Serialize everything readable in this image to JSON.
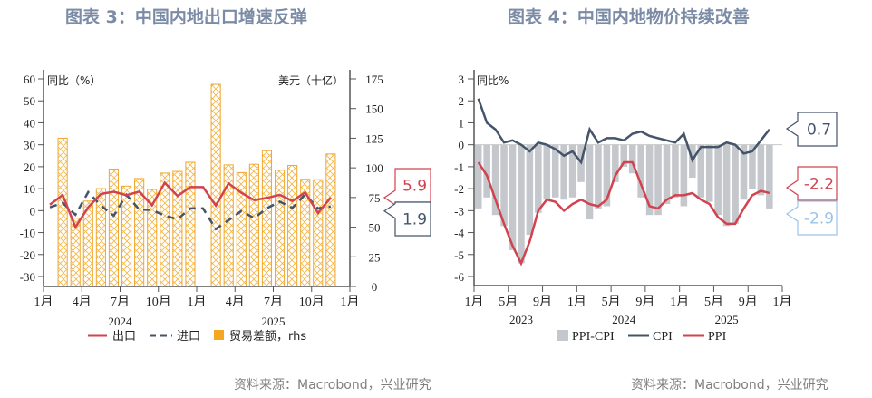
{
  "charts": [
    {
      "title": "图表 3：中国内地出口增速反弹",
      "source": "资料来源：Macrobond，兴业研究",
      "chart_data": {
        "type": "bar+line",
        "y_left_label": "同比（%）",
        "y_right_label": "美元（十亿）",
        "ylim_left": [
          -35,
          62
        ],
        "yticks_left": [
          60,
          50,
          40,
          30,
          20,
          10,
          0,
          -10,
          -20,
          -30
        ],
        "ylim_right": [
          0,
          180
        ],
        "yticks_right": [
          175,
          150,
          125,
          100,
          75,
          50,
          25,
          0
        ],
        "xticks": [
          "1月",
          "4月",
          "7月",
          "10月",
          "1月",
          "4月",
          "7月",
          "10月",
          "1月"
        ],
        "years": [
          "2024",
          "2025"
        ],
        "months": [
          "2024-01",
          "2024-02",
          "2024-03",
          "2024-04",
          "2024-05",
          "2024-06",
          "2024-07",
          "2024-08",
          "2024-09",
          "2024-10",
          "2024-11",
          "2024-12",
          "2025-01",
          "2025-02",
          "2025-03",
          "2025-04",
          "2025-05",
          "2025-06",
          "2025-07",
          "2025-08",
          "2025-09",
          "2025-10",
          "2025-11"
        ],
        "series": [
          {
            "name": "出口",
            "type": "line",
            "axis": "left",
            "color": "#d0434f",
            "values": [
              2.7,
              7.1,
              -7.5,
              1.5,
              7.6,
              8.6,
              7.0,
              8.7,
              2.4,
              12.7,
              6.7,
              10.7,
              10.7,
              2.3,
              12.4,
              8.1,
              4.8,
              5.8,
              7.2,
              4.4,
              8.3,
              -1.1,
              5.9
            ]
          },
          {
            "name": "进口",
            "type": "dashed-line",
            "axis": "left",
            "color": "#44546a",
            "values": [
              1.5,
              3.5,
              -1.9,
              8.4,
              2.3,
              -2.3,
              7.2,
              0.5,
              0.3,
              -2.3,
              -3.9,
              1.0,
              1.0,
              -8.4,
              -4.3,
              -0.2,
              -3.4,
              1.1,
              4.1,
              1.3,
              7.4,
              1.0,
              1.9
            ]
          },
          {
            "name": "贸易差额，rhs",
            "type": "hatched-bar",
            "axis": "right",
            "color": "#f5a623",
            "values": [
              null,
              125,
              57.5,
              72,
              82.5,
              99,
              84.6,
              91,
              81.8,
              95.6,
              97,
              104.7,
              null,
              170.4,
              102.5,
              96,
              103,
              114.5,
              98,
              102,
              90.4,
              90,
              111.7
            ]
          }
        ],
        "callouts": [
          {
            "text": "5.9",
            "series": "出口",
            "color": "#d0434f"
          },
          {
            "text": "1.9",
            "series": "进口",
            "color": "#44546a"
          }
        ],
        "legend_placement": "bottom",
        "grid": false
      }
    },
    {
      "title": "图表 4：中国内地物价持续改善",
      "source": "资料来源：Macrobond，兴业研究",
      "chart_data": {
        "type": "bar+line",
        "y_left_label": "同比%",
        "ylim": [
          -6.6,
          3.2
        ],
        "yticks": [
          3,
          2,
          1,
          0,
          -1,
          -2,
          -3,
          -4,
          -5,
          -6
        ],
        "xticks": [
          "1月",
          "5月",
          "9月",
          "1月",
          "5月",
          "9月",
          "1月",
          "5月",
          "9月",
          "1月"
        ],
        "years": [
          "2023",
          "2024",
          "2025"
        ],
        "months_start": "2023-01",
        "series": [
          {
            "name": "PPI-CPI",
            "type": "bar",
            "color": "#c4c7cc",
            "values": [
              -2.9,
              -2.4,
              -3.2,
              -3.7,
              -4.8,
              -5.4,
              -4.1,
              -3.1,
              -2.5,
              -2.4,
              -2.5,
              -2.4,
              -1.7,
              -3.4,
              -2.9,
              -2.8,
              -1.7,
              -1.0,
              -1.3,
              -2.4,
              -3.2,
              -3.2,
              -2.7,
              -2.4,
              -2.8,
              -1.5,
              -2.4,
              -2.6,
              -3.2,
              -3.7,
              -3.6,
              -2.5,
              -2.0,
              -2.3,
              -2.9
            ]
          },
          {
            "name": "CPI",
            "type": "line",
            "color": "#44546a",
            "values": [
              2.1,
              1.0,
              0.7,
              0.1,
              0.2,
              0.0,
              -0.3,
              0.1,
              0.0,
              -0.2,
              -0.5,
              -0.3,
              -0.8,
              0.7,
              0.1,
              0.3,
              0.3,
              0.2,
              0.5,
              0.6,
              0.4,
              0.3,
              0.2,
              0.1,
              0.5,
              -0.7,
              -0.1,
              -0.1,
              -0.1,
              0.1,
              0.0,
              -0.4,
              -0.3,
              0.2,
              0.7
            ]
          },
          {
            "name": "PPI",
            "type": "line",
            "color": "#d0434f",
            "values": [
              -0.8,
              -1.4,
              -2.5,
              -3.6,
              -4.6,
              -5.4,
              -4.4,
              -3.0,
              -2.5,
              -2.6,
              -3.0,
              -2.7,
              -2.5,
              -2.7,
              -2.8,
              -2.5,
              -1.4,
              -0.8,
              -0.8,
              -1.8,
              -2.8,
              -2.9,
              -2.5,
              -2.3,
              -2.3,
              -2.2,
              -2.5,
              -2.7,
              -3.3,
              -3.6,
              -3.6,
              -2.9,
              -2.3,
              -2.1,
              -2.2
            ]
          }
        ],
        "callouts": [
          {
            "text": "0.7",
            "series": "CPI",
            "color": "#44546a"
          },
          {
            "text": "-2.2",
            "series": "PPI",
            "color": "#d0434f"
          },
          {
            "text": "-2.9",
            "series": "PPI-CPI",
            "color": "#9dc3e6"
          }
        ],
        "legend_placement": "bottom",
        "grid": false
      }
    }
  ]
}
